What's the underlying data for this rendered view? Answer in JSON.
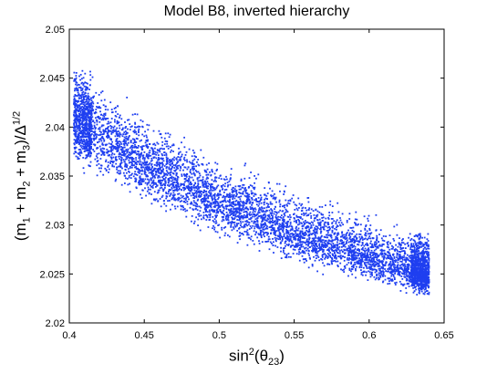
{
  "chart_data": {
    "type": "scatter",
    "title": "Model B8, inverted hierarchy",
    "xlabel": {
      "base": "sin",
      "sup": "2",
      "open": "(θ",
      "sub": "23",
      "close": ")"
    },
    "ylabel": {
      "p1": "(m",
      "s1": "1",
      "p2": " + m",
      "s2": "2",
      "p3": " + m",
      "s3": "3",
      "p4": ")/Δ",
      "sup": "1/2"
    },
    "xlim": [
      0.4,
      0.65
    ],
    "ylim": [
      2.02,
      2.05
    ],
    "xticks": [
      "0.4",
      "0.45",
      "0.5",
      "0.55",
      "0.6",
      "0.65"
    ],
    "yticks": [
      "2.02",
      "2.025",
      "2.03",
      "2.035",
      "2.04",
      "2.045",
      "2.05"
    ],
    "grid": false,
    "point_color": "#1f3ff0",
    "series": [
      {
        "x_range": [
          0.403,
          0.64
        ],
        "band_upper": [
          [
            0.403,
            2.0478
          ],
          [
            0.42,
            2.0455
          ],
          [
            0.45,
            2.0418
          ],
          [
            0.5,
            2.0375
          ],
          [
            0.55,
            2.0345
          ],
          [
            0.6,
            2.0315
          ],
          [
            0.64,
            2.0295
          ]
        ],
        "band_lower": [
          [
            0.403,
            2.0355
          ],
          [
            0.42,
            2.034
          ],
          [
            0.45,
            2.0315
          ],
          [
            0.5,
            2.0283
          ],
          [
            0.55,
            2.0255
          ],
          [
            0.6,
            2.0235
          ],
          [
            0.64,
            2.0222
          ]
        ],
        "band_center": [
          [
            0.403,
            2.0412
          ],
          [
            0.42,
            2.0392
          ],
          [
            0.45,
            2.0362
          ],
          [
            0.5,
            2.0325
          ],
          [
            0.55,
            2.0295
          ],
          [
            0.6,
            2.0268
          ],
          [
            0.64,
            2.025
          ]
        ],
        "n_points": 6000
      }
    ]
  }
}
